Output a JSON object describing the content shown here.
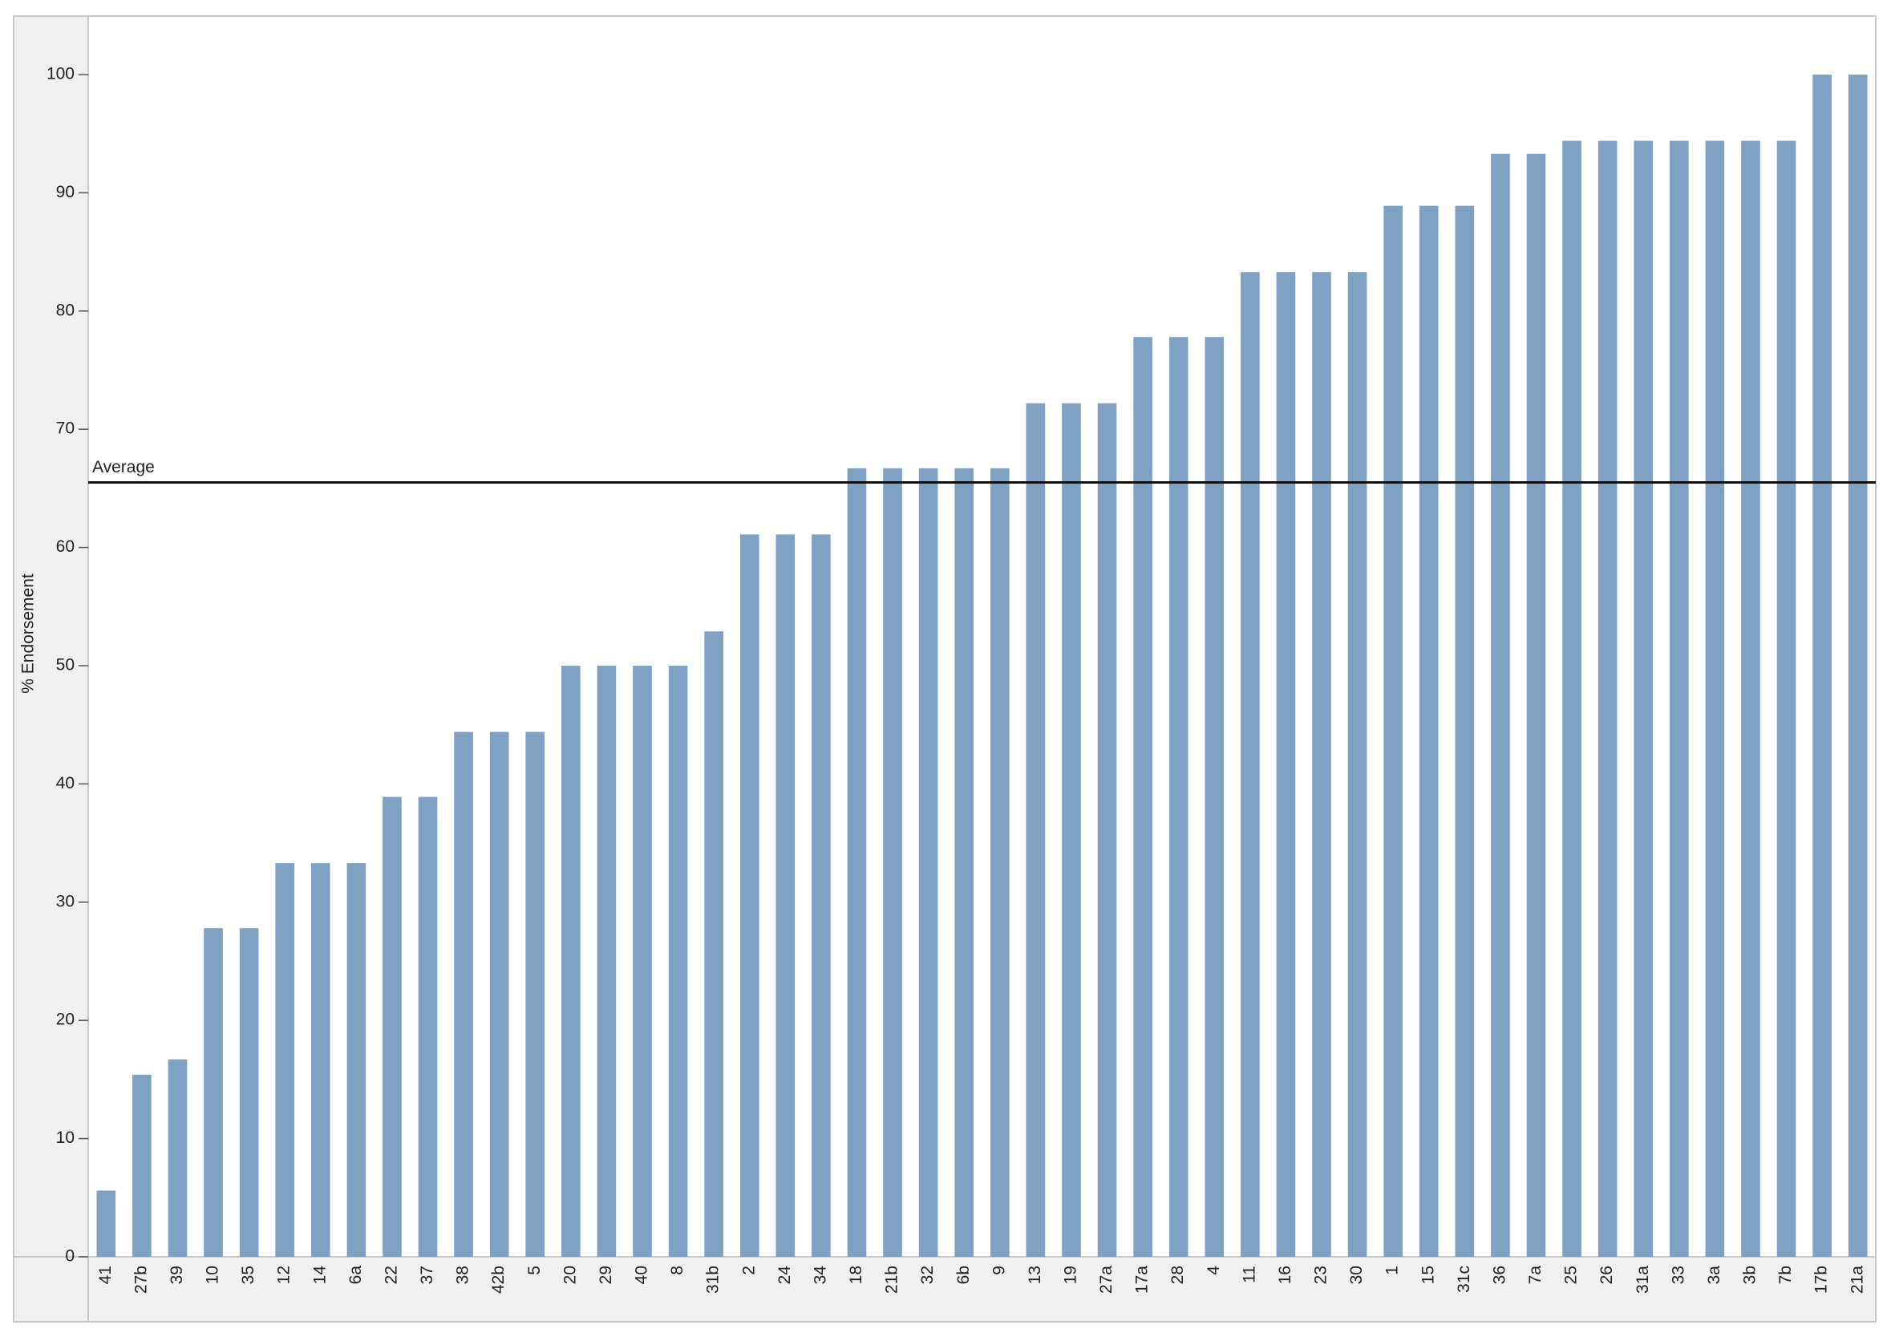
{
  "chart_data": {
    "type": "bar",
    "y_label": "% Endorsement",
    "categories": [
      "41",
      "27b",
      "39",
      "10",
      "35",
      "12",
      "14",
      "6a",
      "22",
      "37",
      "38",
      "42b",
      "5",
      "20",
      "29",
      "40",
      "8",
      "31b",
      "2",
      "24",
      "34",
      "18",
      "21b",
      "32",
      "6b",
      "9",
      "13",
      "19",
      "27a",
      "17a",
      "28",
      "4",
      "11",
      "16",
      "23",
      "30",
      "1",
      "15",
      "31c",
      "36",
      "7a",
      "25",
      "26",
      "31a",
      "33",
      "3a",
      "3b",
      "7b",
      "17b",
      "21a"
    ],
    "values": [
      5.6,
      15.4,
      16.7,
      27.8,
      27.8,
      33.3,
      33.3,
      33.3,
      38.9,
      38.9,
      44.4,
      44.4,
      44.4,
      50,
      50,
      50,
      50,
      52.9,
      61.1,
      61.1,
      61.1,
      66.7,
      66.7,
      66.7,
      66.7,
      66.7,
      72.2,
      72.2,
      72.2,
      77.8,
      77.8,
      77.8,
      83.3,
      83.3,
      83.3,
      83.3,
      88.9,
      88.9,
      88.9,
      93.3,
      93.3,
      94.4,
      94.4,
      94.4,
      94.4,
      94.4,
      94.4,
      94.4,
      100,
      100
    ],
    "color": "#7fa1c4",
    "ylim": [
      0,
      100
    ],
    "yticks": [
      0,
      10,
      20,
      30,
      40,
      50,
      60,
      70,
      80,
      90,
      100
    ],
    "reference_line": {
      "label": "Average",
      "value": 65.5
    }
  }
}
